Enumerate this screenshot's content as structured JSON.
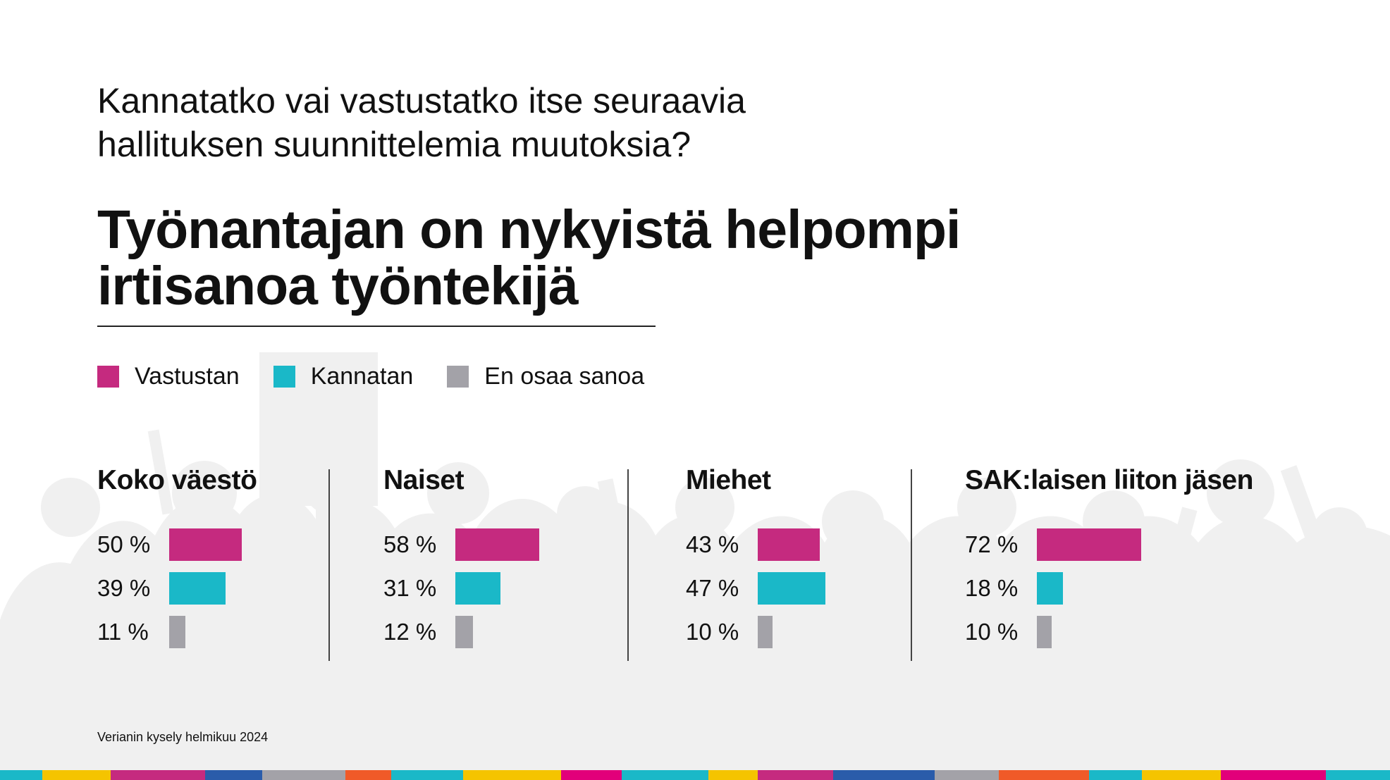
{
  "question": "Kannatatko vai vastustatko itse seuraavia hallituksen suunnittelemia muutoksia?",
  "headline_line1": "Työnantajan on nykyistä helpompi",
  "headline_line2": "irtisanoa työntekijä",
  "source": "Verianin kysely helmikuu 2024",
  "colors": {
    "vastustan": "#c52a7f",
    "kannatan": "#1ab8c8",
    "en_osaa": "#a3a2a8",
    "background_silhouette": "#f0f0f0"
  },
  "chart_data": {
    "type": "bar",
    "orientation": "horizontal",
    "legend": [
      {
        "name": "Vastustan",
        "color": "#c52a7f"
      },
      {
        "name": "Kannatan",
        "color": "#1ab8c8"
      },
      {
        "name": "En osaa sanoa",
        "color": "#a3a2a8"
      }
    ],
    "legend_placement": "top-left",
    "grid": false,
    "unit": "%",
    "panels": [
      {
        "title": "Koko väestö",
        "values": [
          50,
          39,
          11
        ],
        "labels": [
          "50 %",
          "39 %",
          "11 %"
        ]
      },
      {
        "title": "Naiset",
        "values": [
          58,
          31,
          12
        ],
        "labels": [
          "58 %",
          "31 %",
          "12 %"
        ]
      },
      {
        "title": "Miehet",
        "values": [
          43,
          47,
          10
        ],
        "labels": [
          "43 %",
          "47 %",
          "10 %"
        ]
      },
      {
        "title": "SAK:laisen liiton jäsen",
        "values": [
          72,
          18,
          10
        ],
        "labels": [
          "72 %",
          "18 %",
          "10 %"
        ]
      }
    ]
  }
}
